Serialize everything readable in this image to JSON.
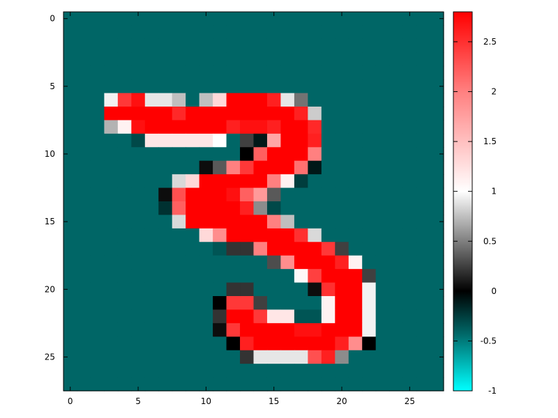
{
  "chart_data": {
    "type": "heatmap",
    "title": "",
    "xlabel": "",
    "ylabel": "",
    "grid": false,
    "xlim": [
      -0.5,
      27.5
    ],
    "ylim": [
      27.5,
      -0.5
    ],
    "x_ticks": [
      0,
      5,
      10,
      15,
      20,
      25
    ],
    "y_ticks": [
      0,
      5,
      10,
      15,
      20,
      25
    ],
    "colorbar": {
      "range": [
        -1,
        2.8
      ],
      "ticks": [
        -1,
        -0.5,
        0,
        0.5,
        1,
        1.5,
        2,
        2.5
      ],
      "tick_labels": [
        "-1",
        "-0.5",
        "0",
        "0.5",
        "1",
        "1.5",
        "2",
        "2.5"
      ],
      "stops": [
        {
          "value": -1.0,
          "color": "#00ffff"
        },
        {
          "value": -0.42,
          "color": "#006666"
        },
        {
          "value": 0.0,
          "color": "#000000"
        },
        {
          "value": 1.0,
          "color": "#ffffff"
        },
        {
          "value": 2.0,
          "color": "#ff8080"
        },
        {
          "value": 2.8,
          "color": "#ff0000"
        }
      ]
    },
    "background_value": -0.42,
    "values": [
      [
        -0.42,
        -0.42,
        -0.42,
        -0.42,
        -0.42,
        -0.42,
        -0.42,
        -0.42,
        -0.42,
        -0.42,
        -0.42,
        -0.42,
        -0.42,
        -0.42,
        -0.42,
        -0.42,
        -0.42,
        -0.42,
        -0.42,
        -0.42,
        -0.42,
        -0.42,
        -0.42,
        -0.42,
        -0.42,
        -0.42,
        -0.42,
        -0.42
      ],
      [
        -0.42,
        -0.42,
        -0.42,
        -0.42,
        -0.42,
        -0.42,
        -0.42,
        -0.42,
        -0.42,
        -0.42,
        -0.42,
        -0.42,
        -0.42,
        -0.42,
        -0.42,
        -0.42,
        -0.42,
        -0.42,
        -0.42,
        -0.42,
        -0.42,
        -0.42,
        -0.42,
        -0.42,
        -0.42,
        -0.42,
        -0.42,
        -0.42
      ],
      [
        -0.42,
        -0.42,
        -0.42,
        -0.42,
        -0.42,
        -0.42,
        -0.42,
        -0.42,
        -0.42,
        -0.42,
        -0.42,
        -0.42,
        -0.42,
        -0.42,
        -0.42,
        -0.42,
        -0.42,
        -0.42,
        -0.42,
        -0.42,
        -0.42,
        -0.42,
        -0.42,
        -0.42,
        -0.42,
        -0.42,
        -0.42,
        -0.42
      ],
      [
        -0.42,
        -0.42,
        -0.42,
        -0.42,
        -0.42,
        -0.42,
        -0.42,
        -0.42,
        -0.42,
        -0.42,
        -0.42,
        -0.42,
        -0.42,
        -0.42,
        -0.42,
        -0.42,
        -0.42,
        -0.42,
        -0.42,
        -0.42,
        -0.42,
        -0.42,
        -0.42,
        -0.42,
        -0.42,
        -0.42,
        -0.42,
        -0.42
      ],
      [
        -0.42,
        -0.42,
        -0.42,
        -0.42,
        -0.42,
        -0.42,
        -0.42,
        -0.42,
        -0.42,
        -0.42,
        -0.42,
        -0.42,
        -0.42,
        -0.42,
        -0.42,
        -0.42,
        -0.42,
        -0.42,
        -0.42,
        -0.42,
        -0.42,
        -0.42,
        -0.42,
        -0.42,
        -0.42,
        -0.42,
        -0.42,
        -0.42
      ],
      [
        -0.42,
        -0.42,
        -0.42,
        -0.42,
        -0.42,
        -0.42,
        -0.42,
        -0.42,
        -0.42,
        -0.42,
        -0.42,
        -0.42,
        -0.42,
        -0.42,
        -0.42,
        -0.42,
        -0.42,
        -0.42,
        -0.42,
        -0.42,
        -0.42,
        -0.42,
        -0.42,
        -0.42,
        -0.42,
        -0.42,
        -0.42,
        -0.42
      ],
      [
        -0.42,
        -0.42,
        -0.42,
        0.95,
        2.45,
        2.7,
        0.9,
        0.9,
        0.75,
        -0.42,
        0.75,
        1.3,
        2.8,
        2.8,
        2.8,
        2.6,
        0.9,
        0.45,
        -0.42,
        -0.42,
        -0.42,
        -0.42,
        -0.42,
        -0.42,
        -0.42,
        -0.42,
        -0.42,
        -0.42
      ],
      [
        -0.42,
        -0.42,
        -0.42,
        2.8,
        2.8,
        2.8,
        2.8,
        2.8,
        2.55,
        2.8,
        2.8,
        2.8,
        2.8,
        2.8,
        2.8,
        2.8,
        2.8,
        2.6,
        0.8,
        -0.42,
        -0.42,
        -0.42,
        -0.42,
        -0.42,
        -0.42,
        -0.42,
        -0.42,
        -0.42
      ],
      [
        -0.42,
        -0.42,
        -0.42,
        0.7,
        1.1,
        2.7,
        2.8,
        2.8,
        2.8,
        2.8,
        2.8,
        2.8,
        2.6,
        2.7,
        2.7,
        2.6,
        2.8,
        2.8,
        2.55,
        -0.42,
        -0.42,
        -0.42,
        -0.42,
        -0.42,
        -0.42,
        -0.42,
        -0.42,
        -0.42
      ],
      [
        -0.42,
        -0.42,
        -0.42,
        -0.42,
        -0.42,
        -0.3,
        1.2,
        1.2,
        1.2,
        1.2,
        1.2,
        1.0,
        -0.42,
        0.25,
        -0.1,
        1.7,
        2.8,
        2.8,
        2.6,
        -0.42,
        -0.42,
        -0.42,
        -0.42,
        -0.42,
        -0.42,
        -0.42,
        -0.42,
        -0.42
      ],
      [
        -0.42,
        -0.42,
        -0.42,
        -0.42,
        -0.42,
        -0.42,
        -0.42,
        -0.42,
        -0.42,
        -0.42,
        -0.42,
        -0.42,
        -0.42,
        0.0,
        2.2,
        2.8,
        2.8,
        2.8,
        2.0,
        -0.42,
        -0.42,
        -0.42,
        -0.42,
        -0.42,
        -0.42,
        -0.42,
        -0.42,
        -0.42
      ],
      [
        -0.42,
        -0.42,
        -0.42,
        -0.42,
        -0.42,
        -0.42,
        -0.42,
        -0.42,
        -0.42,
        -0.42,
        0.05,
        0.35,
        2.0,
        2.45,
        2.8,
        2.8,
        2.8,
        2.1,
        -0.1,
        -0.42,
        -0.42,
        -0.42,
        -0.42,
        -0.42,
        -0.42,
        -0.42,
        -0.42,
        -0.42
      ],
      [
        -0.42,
        -0.42,
        -0.42,
        -0.42,
        -0.42,
        -0.42,
        -0.42,
        -0.42,
        0.85,
        1.3,
        2.8,
        2.8,
        2.8,
        2.8,
        2.8,
        2.0,
        1.1,
        -0.25,
        -0.42,
        -0.42,
        -0.42,
        -0.42,
        -0.42,
        -0.42,
        -0.42,
        -0.42,
        -0.42,
        -0.42
      ],
      [
        -0.42,
        -0.42,
        -0.42,
        -0.42,
        -0.42,
        -0.42,
        -0.42,
        0.05,
        2.3,
        2.8,
        2.8,
        2.8,
        2.7,
        2.2,
        1.8,
        0.35,
        -0.42,
        -0.42,
        -0.42,
        -0.42,
        -0.42,
        -0.42,
        -0.42,
        -0.42,
        -0.42,
        -0.42,
        -0.42,
        -0.42
      ],
      [
        -0.42,
        -0.42,
        -0.42,
        -0.42,
        -0.42,
        -0.42,
        -0.42,
        -0.2,
        2.2,
        2.8,
        2.8,
        2.8,
        2.8,
        2.6,
        0.55,
        -0.3,
        -0.42,
        -0.42,
        -0.42,
        -0.42,
        -0.42,
        -0.42,
        -0.42,
        -0.42,
        -0.42,
        -0.42,
        -0.42,
        -0.42
      ],
      [
        -0.42,
        -0.42,
        -0.42,
        -0.42,
        -0.42,
        -0.42,
        -0.42,
        -0.42,
        0.85,
        2.8,
        2.8,
        2.8,
        2.8,
        2.8,
        2.8,
        2.0,
        0.75,
        -0.42,
        -0.42,
        -0.42,
        -0.42,
        -0.42,
        -0.42,
        -0.42,
        -0.42,
        -0.42,
        -0.42,
        -0.42
      ],
      [
        -0.42,
        -0.42,
        -0.42,
        -0.42,
        -0.42,
        -0.42,
        -0.42,
        -0.42,
        -0.42,
        -0.42,
        1.3,
        1.9,
        2.8,
        2.8,
        2.8,
        2.8,
        2.8,
        2.5,
        0.85,
        -0.42,
        -0.42,
        -0.42,
        -0.42,
        -0.42,
        -0.42,
        -0.42,
        -0.42,
        -0.42
      ],
      [
        -0.42,
        -0.42,
        -0.42,
        -0.42,
        -0.42,
        -0.42,
        -0.42,
        -0.42,
        -0.42,
        -0.42,
        -0.42,
        -0.35,
        0.2,
        0.2,
        2.0,
        2.8,
        2.8,
        2.8,
        2.8,
        2.45,
        0.25,
        -0.42,
        -0.42,
        -0.42,
        -0.42,
        -0.42,
        -0.42,
        -0.42
      ],
      [
        -0.42,
        -0.42,
        -0.42,
        -0.42,
        -0.42,
        -0.42,
        -0.42,
        -0.42,
        -0.42,
        -0.42,
        -0.42,
        -0.42,
        -0.42,
        -0.42,
        -0.42,
        0.3,
        1.9,
        2.8,
        2.8,
        2.8,
        2.6,
        1.1,
        -0.42,
        -0.42,
        -0.42,
        -0.42,
        -0.42,
        -0.42
      ],
      [
        -0.42,
        -0.42,
        -0.42,
        -0.42,
        -0.42,
        -0.42,
        -0.42,
        -0.42,
        -0.42,
        -0.42,
        -0.42,
        -0.42,
        -0.42,
        -0.42,
        -0.42,
        -0.42,
        -0.42,
        1.05,
        2.4,
        2.8,
        2.8,
        2.8,
        0.25,
        -0.42,
        -0.42,
        -0.42,
        -0.42,
        -0.42
      ],
      [
        -0.42,
        -0.42,
        -0.42,
        -0.42,
        -0.42,
        -0.42,
        -0.42,
        -0.42,
        -0.42,
        -0.42,
        -0.42,
        -0.42,
        0.2,
        0.2,
        -0.42,
        -0.42,
        -0.42,
        -0.42,
        0.05,
        2.5,
        2.8,
        2.8,
        0.95,
        -0.42,
        -0.42,
        -0.42,
        -0.42,
        -0.42
      ],
      [
        -0.42,
        -0.42,
        -0.42,
        -0.42,
        -0.42,
        -0.42,
        -0.42,
        -0.42,
        -0.42,
        -0.42,
        -0.42,
        0.0,
        2.45,
        2.45,
        0.25,
        -0.42,
        -0.42,
        -0.42,
        -0.42,
        1.1,
        2.8,
        2.8,
        0.95,
        -0.42,
        -0.42,
        -0.42,
        -0.42,
        -0.42
      ],
      [
        -0.42,
        -0.42,
        -0.42,
        -0.42,
        -0.42,
        -0.42,
        -0.42,
        -0.42,
        -0.42,
        -0.42,
        -0.42,
        0.2,
        2.8,
        2.8,
        2.45,
        1.2,
        1.2,
        -0.35,
        -0.35,
        1.1,
        2.8,
        2.8,
        0.95,
        -0.42,
        -0.42,
        -0.42,
        -0.42,
        -0.42
      ],
      [
        -0.42,
        -0.42,
        -0.42,
        -0.42,
        -0.42,
        -0.42,
        -0.42,
        -0.42,
        -0.42,
        -0.42,
        -0.42,
        0.05,
        2.45,
        2.8,
        2.8,
        2.8,
        2.8,
        2.7,
        2.7,
        2.8,
        2.8,
        2.8,
        0.95,
        -0.42,
        -0.42,
        -0.42,
        -0.42,
        -0.42
      ],
      [
        -0.42,
        -0.42,
        -0.42,
        -0.42,
        -0.42,
        -0.42,
        -0.42,
        -0.42,
        -0.42,
        -0.42,
        -0.42,
        -0.42,
        0.0,
        2.6,
        2.8,
        2.8,
        2.8,
        2.8,
        2.8,
        2.8,
        2.6,
        1.9,
        0.0,
        -0.42,
        -0.42,
        -0.42,
        -0.42,
        -0.42
      ],
      [
        -0.42,
        -0.42,
        -0.42,
        -0.42,
        -0.42,
        -0.42,
        -0.42,
        -0.42,
        -0.42,
        -0.42,
        -0.42,
        -0.42,
        -0.42,
        0.2,
        0.9,
        0.9,
        0.9,
        0.9,
        2.3,
        2.6,
        0.55,
        -0.42,
        -0.42,
        -0.42,
        -0.42,
        -0.42,
        -0.42,
        -0.42
      ],
      [
        -0.42,
        -0.42,
        -0.42,
        -0.42,
        -0.42,
        -0.42,
        -0.42,
        -0.42,
        -0.42,
        -0.42,
        -0.42,
        -0.42,
        -0.42,
        -0.42,
        -0.42,
        -0.42,
        -0.42,
        -0.42,
        -0.42,
        -0.42,
        -0.42,
        -0.42,
        -0.42,
        -0.42,
        -0.42,
        -0.42,
        -0.42,
        -0.42
      ],
      [
        -0.42,
        -0.42,
        -0.42,
        -0.42,
        -0.42,
        -0.42,
        -0.42,
        -0.42,
        -0.42,
        -0.42,
        -0.42,
        -0.42,
        -0.42,
        -0.42,
        -0.42,
        -0.42,
        -0.42,
        -0.42,
        -0.42,
        -0.42,
        -0.42,
        -0.42,
        -0.42,
        -0.42,
        -0.42,
        -0.42,
        -0.42,
        -0.42
      ]
    ]
  }
}
